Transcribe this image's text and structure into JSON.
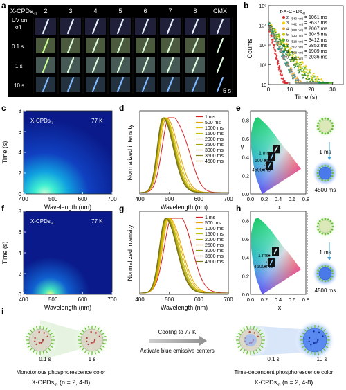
{
  "panel_labels": [
    "a",
    "b",
    "c",
    "d",
    "e",
    "f",
    "g",
    "h",
    "i"
  ],
  "panel_a": {
    "header": "X-CPDs",
    "header_sub": "-n",
    "columns": [
      "2",
      "3",
      "4",
      "5",
      "6",
      "7",
      "8",
      "CMX"
    ],
    "rows": [
      "UV on",
      "off",
      "0.1 s",
      "1 s",
      "10 s"
    ],
    "scale_note": "5 s"
  },
  "panel_b": {
    "legend_title": "τ-X-CPDs",
    "legend_sub": "-n",
    "chart_data": {
      "type": "scatter",
      "xlabel": "Time (s)",
      "ylabel": "Counts",
      "xlim": [
        0,
        35
      ],
      "xticks": [
        "0",
        "10",
        "20",
        "30"
      ],
      "yscale": "log",
      "ylim": [
        10,
        100000
      ],
      "yticks": [
        "10",
        "10²",
        "10³",
        "10⁴",
        "10⁵"
      ],
      "series": [
        {
          "name": "2",
          "wl": "(540 nm)",
          "tau": "1061 ms",
          "color": "#d62728",
          "max_t": 9
        },
        {
          "name": "3",
          "wl": "(442 nm)",
          "tau": "3637 ms",
          "color": "#f5d000",
          "max_t": 26
        },
        {
          "name": "4",
          "wl": "(500 nm)",
          "tau": "2067 ms",
          "color": "#f0a020",
          "max_t": 21
        },
        {
          "name": "5",
          "wl": "(530 nm)",
          "tau": "3045 ms",
          "color": "#c8c800",
          "max_t": 25
        },
        {
          "name": "6",
          "wl": "(518 nm)",
          "tau": "3412 ms",
          "color": "#58b028",
          "max_t": 30
        },
        {
          "name": "7",
          "wl": "(502 nm)",
          "tau": "2852 ms",
          "color": "#1f7a2a",
          "max_t": 28
        },
        {
          "name": "8",
          "wl": "(508 nm)",
          "tau": "1989 ms",
          "color": "#0a8a7a",
          "max_t": 24
        },
        {
          "name": "9",
          "wl": "(545 nm)",
          "tau": "2036 ms",
          "color": "#888888",
          "max_t": 23
        }
      ]
    }
  },
  "panel_c": {
    "label": "X-CPDs",
    "label_sub": "-3",
    "temp": "77 K",
    "xlabel": "Wavelength (nm)",
    "ylabel": "Time (s)",
    "xticks": [
      "400",
      "500",
      "600",
      "700"
    ],
    "yticks": [
      "0",
      "2",
      "4",
      "6",
      "8"
    ]
  },
  "panel_d": {
    "chart_data": {
      "type": "line",
      "xlabel": "Wavelength (nm)",
      "ylabel": "Normalized intensity",
      "xlim": [
        400,
        700
      ],
      "xticks": [
        "400",
        "500",
        "600",
        "700"
      ],
      "series": [
        {
          "name": "1 ms",
          "color": "#d81e1e",
          "peak": 500,
          "width": 62
        },
        {
          "name": "500 ms",
          "color": "#e8a000",
          "peak": 490,
          "width": 56
        },
        {
          "name": "1000 ms",
          "color": "#e8c000",
          "peak": 486,
          "width": 54
        },
        {
          "name": "1500 ms",
          "color": "#c8b800",
          "peak": 484,
          "width": 52
        },
        {
          "name": "2000 ms",
          "color": "#b8b000",
          "peak": 482,
          "width": 51
        },
        {
          "name": "2500 ms",
          "color": "#a8a000",
          "peak": 481,
          "width": 50
        },
        {
          "name": "3000 ms",
          "color": "#989010",
          "peak": 480,
          "width": 50
        },
        {
          "name": "3500 ms",
          "color": "#888018",
          "peak": 479,
          "width": 49
        },
        {
          "name": "4500 ms",
          "color": "#786f18",
          "peak": 478,
          "width": 49
        }
      ]
    }
  },
  "panel_e": {
    "xlabel": "x",
    "ylabel": "y",
    "xticks": [
      "0.0",
      "0.2",
      "0.4",
      "0.6",
      "0.8"
    ],
    "yticks": [
      "0.0",
      "0.2",
      "0.4",
      "0.6",
      "0.8"
    ],
    "points": [
      {
        "label": "1 ms",
        "x": 0.28,
        "y": 0.44
      },
      {
        "label": "500 ms",
        "x": 0.22,
        "y": 0.36
      },
      {
        "label": "4500 ms",
        "x": 0.18,
        "y": 0.26
      }
    ],
    "state_labels": [
      "1 ms",
      "4500 ms"
    ]
  },
  "panel_f": {
    "label": "X-CPDs",
    "label_sub": "-4",
    "temp": "77 K",
    "xlabel": "Wavelength (nm)",
    "ylabel": "Time (s)",
    "xticks": [
      "400",
      "500",
      "600",
      "700"
    ],
    "yticks": [
      "0",
      "2",
      "4",
      "6",
      "8"
    ]
  },
  "panel_g": {
    "chart_data": {
      "type": "line",
      "xlabel": "Wavelength (nm)",
      "ylabel": "Normalized intensity",
      "xlim": [
        400,
        700
      ],
      "xticks": [
        "400",
        "500",
        "600",
        "700"
      ],
      "series": [
        {
          "name": "1 ms",
          "color": "#d81e1e",
          "peak": 510,
          "width": 70
        },
        {
          "name": "500 ms",
          "color": "#e8a000",
          "peak": 500,
          "width": 60
        },
        {
          "name": "1000 ms",
          "color": "#e8c000",
          "peak": 497,
          "width": 58
        },
        {
          "name": "1500 ms",
          "color": "#c8b800",
          "peak": 494,
          "width": 56
        },
        {
          "name": "2000 ms",
          "color": "#b8b000",
          "peak": 492,
          "width": 55
        },
        {
          "name": "2500 ms",
          "color": "#a8a000",
          "peak": 490,
          "width": 54
        },
        {
          "name": "3000 ms",
          "color": "#989010",
          "peak": 489,
          "width": 54
        },
        {
          "name": "3500 ms",
          "color": "#888018",
          "peak": 488,
          "width": 53
        },
        {
          "name": "4500 ms",
          "color": "#786f18",
          "peak": 487,
          "width": 53
        }
      ]
    }
  },
  "panel_h": {
    "xlabel": "x",
    "xticks": [
      "0.0",
      "0.2",
      "0.4",
      "0.6",
      "0.8"
    ],
    "yticks": [
      "0.0",
      "0.2",
      "0.4",
      "0.6",
      "0.8"
    ],
    "points": [
      {
        "label": "1 ms",
        "x": 0.27,
        "y": 0.42
      },
      {
        "label": "4500 ms",
        "x": 0.21,
        "y": 0.3
      }
    ],
    "state_labels": [
      "1 ms",
      "4500 ms"
    ]
  },
  "panel_i": {
    "left_times": [
      "0.1 s",
      "1 s"
    ],
    "left_caption": "Monotonous phosphorescence color",
    "left_name": "X-CPDs",
    "left_name_sub": "-n",
    "left_name_rest": " (n = 2, 4-8)",
    "arrow_top": "Cooling to 77 K",
    "arrow_bottom": "Activate blue emissive centers",
    "right_times": [
      "0.1 s",
      "10 s"
    ],
    "right_caption": "Time-dependent phosphorescence color",
    "right_name": "X-CPDs",
    "right_name_sub": "-n",
    "right_name_rest": " (n = 2, 4-8)"
  }
}
